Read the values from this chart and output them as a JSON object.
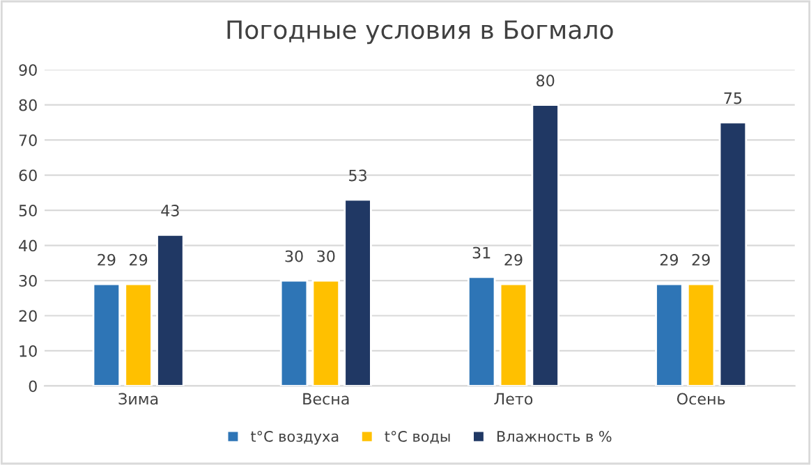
{
  "chart_data": {
    "type": "bar",
    "title": "Погодные условия в Богмало",
    "categories": [
      "Зима",
      "Весна",
      "Лето",
      "Осень"
    ],
    "series": [
      {
        "name": "t°C воздуха",
        "color": "#2e75b6",
        "values": [
          29,
          30,
          31,
          29
        ]
      },
      {
        "name": "t°C воды",
        "color": "#ffc000",
        "values": [
          29,
          30,
          29,
          29
        ]
      },
      {
        "name": "Влажность в %",
        "color": "#203864",
        "values": [
          43,
          53,
          80,
          75
        ]
      }
    ],
    "ylim": [
      0,
      90
    ],
    "yticks": [
      0,
      10,
      20,
      30,
      40,
      50,
      60,
      70,
      80,
      90
    ],
    "grid": "y",
    "legend": "bottom",
    "data_labels": true
  }
}
